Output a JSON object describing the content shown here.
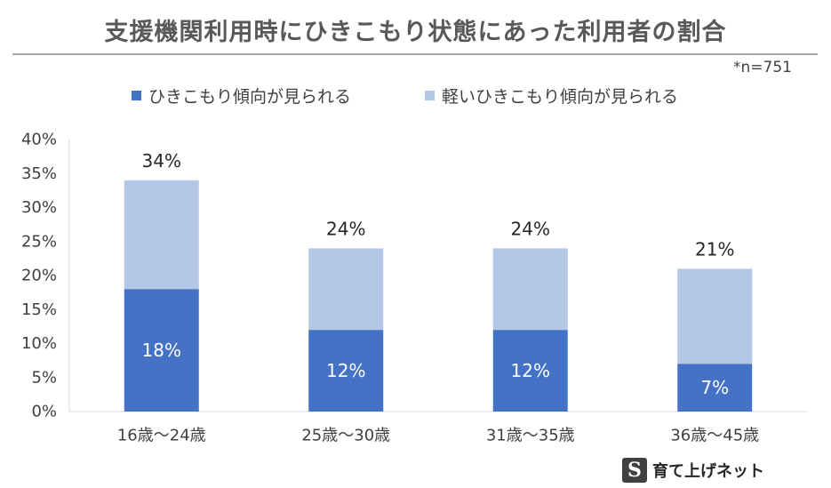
{
  "title": "支援機関利用時にひきこもり状態にあった利用者の割合",
  "note": "*n=751",
  "colors": {
    "strong": "#4472c4",
    "light": "#b4c7e7",
    "axis": "#d9d9d9",
    "text": "#404040"
  },
  "logo": {
    "mark": "S",
    "text": "育て上げネット"
  },
  "chart_data": {
    "type": "bar",
    "stacked": true,
    "categories": [
      "16歳～24歳",
      "25歳～30歳",
      "31歳～35歳",
      "36歳～45歳"
    ],
    "series": [
      {
        "name": "ひきこもり傾向が見られる",
        "values": [
          18,
          12,
          12,
          7
        ]
      },
      {
        "name": "軽いひきこもり傾向が見られる",
        "values": [
          16,
          12,
          12,
          14
        ]
      }
    ],
    "data_labels_bottom": [
      "18%",
      "12%",
      "12%",
      "7%"
    ],
    "data_labels_total": [
      "34%",
      "24%",
      "24%",
      "21%"
    ],
    "ylim": [
      0,
      40
    ],
    "y_ticks": [
      "0%",
      "5%",
      "10%",
      "15%",
      "20%",
      "25%",
      "30%",
      "35%",
      "40%"
    ],
    "legend": "top",
    "grid": false
  }
}
